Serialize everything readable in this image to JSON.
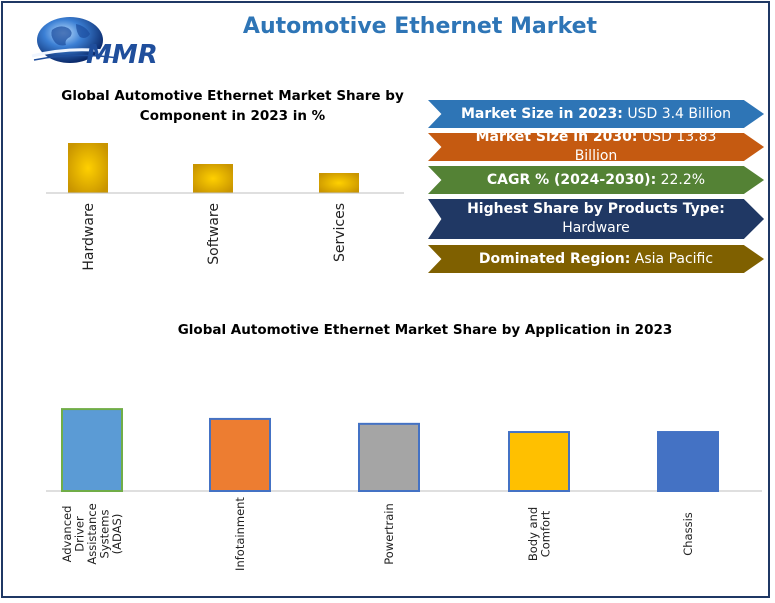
{
  "header": {
    "logo_text": "MMR",
    "title": "Automotive Ethernet Market"
  },
  "info_boxes": [
    {
      "label": "Market Size in 2023:",
      "value": "USD 3.4  Billion",
      "color": "#2e75b6"
    },
    {
      "label": "Market Size in 2030:",
      "value": "USD 13.83 Billion",
      "color": "#c55a11"
    },
    {
      "label": "CAGR % (2024-2030):",
      "value": "22.2%",
      "color": "#548235"
    },
    {
      "label": "Highest Share by Products Type:",
      "value": "Hardware",
      "color": "#203864"
    },
    {
      "label": "Dominated Region:",
      "value": "Asia Pacific",
      "color": "#7f6000"
    }
  ],
  "chart_data": [
    {
      "type": "bar",
      "title": "Global Automotive Ethernet Market Share by Component in 2023 in %",
      "title_line1": "Global Automotive Ethernet Market Share by",
      "title_line2": "Component in 2023 in %",
      "categories": [
        "Hardware",
        "Software",
        "Services"
      ],
      "values": [
        100,
        58,
        40
      ],
      "ylim": [
        0,
        110
      ],
      "bar_color": "#e6b300",
      "grid": false,
      "legend": "none"
    },
    {
      "type": "bar",
      "title": "Global Automotive Ethernet Market Share by Application in 2023",
      "categories": [
        "Advanced Driver Assistance Systems (ADAS)",
        "Infotainment",
        "Powertrain",
        "Body and Comfort",
        "Chassis"
      ],
      "category_lines": [
        [
          "Advanced",
          "Driver",
          "Assistance",
          "Systems",
          "(ADAS)"
        ],
        [
          "Infotainment"
        ],
        [
          "Powertrain"
        ],
        [
          "Body and",
          "Comfort"
        ],
        [
          "Chassis"
        ]
      ],
      "values": [
        100,
        88,
        82,
        72,
        72
      ],
      "ylim": [
        0,
        105
      ],
      "colors": [
        "#5b9bd5",
        "#ed7d31",
        "#a5a5a5",
        "#ffc000",
        "#4472c4"
      ],
      "grid": false,
      "legend": "none"
    }
  ]
}
